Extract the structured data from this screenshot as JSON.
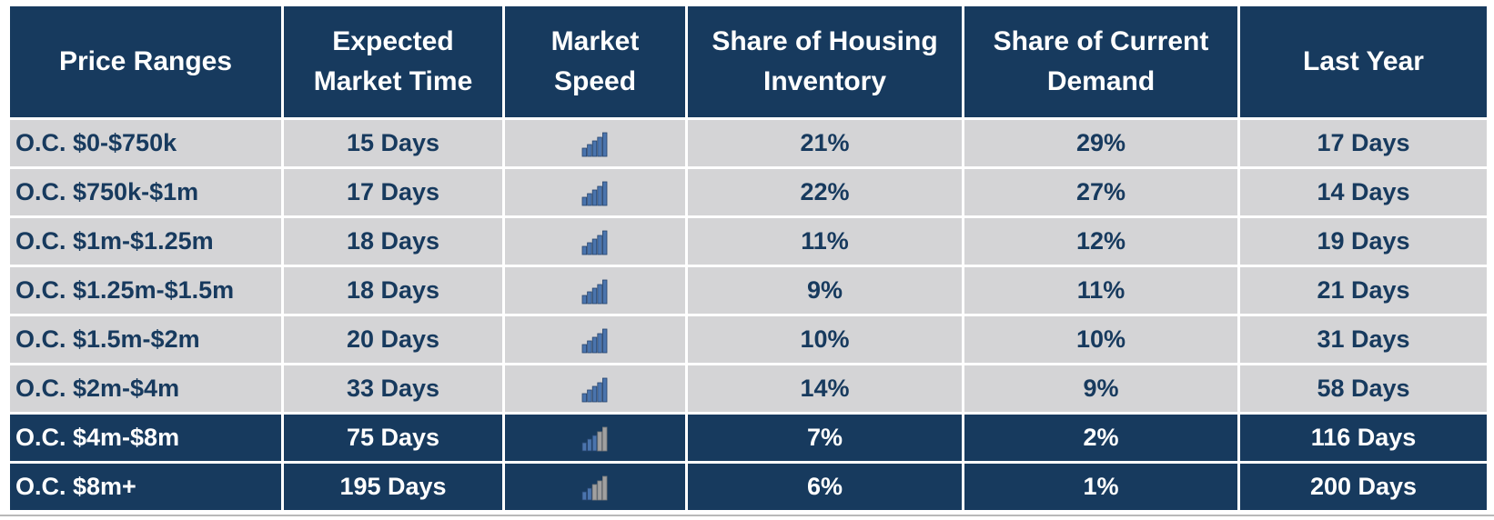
{
  "table": {
    "headers": {
      "range": [
        "Price Ranges"
      ],
      "time": [
        "Expected",
        "Market Time"
      ],
      "speed": [
        "Market",
        "Speed"
      ],
      "inventory": [
        "Share of Housing",
        "Inventory"
      ],
      "demand": [
        "Share of Current",
        "Demand"
      ],
      "last_year": [
        "Last Year"
      ]
    },
    "rows": [
      {
        "range": "O.C. $0-$750k",
        "time": "15 Days",
        "speed": "fast",
        "speed_bars": 5,
        "inventory": "21%",
        "demand": "29%",
        "last_year": "17 Days"
      },
      {
        "range": "O.C. $750k-$1m",
        "time": "17 Days",
        "speed": "fast",
        "speed_bars": 5,
        "inventory": "22%",
        "demand": "27%",
        "last_year": "14 Days"
      },
      {
        "range": "O.C. $1m-$1.25m",
        "time": "18 Days",
        "speed": "fast",
        "speed_bars": 5,
        "inventory": "11%",
        "demand": "12%",
        "last_year": "19 Days"
      },
      {
        "range": "O.C. $1.25m-$1.5m",
        "time": "18 Days",
        "speed": "fast",
        "speed_bars": 5,
        "inventory": "9%",
        "demand": "11%",
        "last_year": "21 Days"
      },
      {
        "range": "O.C. $1.5m-$2m",
        "time": "20 Days",
        "speed": "fast",
        "speed_bars": 5,
        "inventory": "10%",
        "demand": "10%",
        "last_year": "31 Days"
      },
      {
        "range": "O.C. $2m-$4m",
        "time": "33 Days",
        "speed": "fast",
        "speed_bars": 5,
        "inventory": "14%",
        "demand": "9%",
        "last_year": "58 Days"
      },
      {
        "range": "O.C. $4m-$8m",
        "time": "75 Days",
        "speed": "slower",
        "speed_bars": 3,
        "inventory": "7%",
        "demand": "2%",
        "last_year": "116 Days"
      },
      {
        "range": "O.C. $8m+",
        "time": "195 Days",
        "speed": "slowest",
        "speed_bars": 2,
        "inventory": "6%",
        "demand": "1%",
        "last_year": "200 Days"
      }
    ]
  },
  "colors": {
    "header_bg": "#173a5e",
    "light_row_bg": "#d4d4d6",
    "text_dark": "#173a5e",
    "bar_active": "#4a74ad",
    "bar_inactive": "#a0a0a0",
    "bar_outline": "#27456e"
  },
  "icons": {
    "speed": "signal-bars-icon"
  }
}
